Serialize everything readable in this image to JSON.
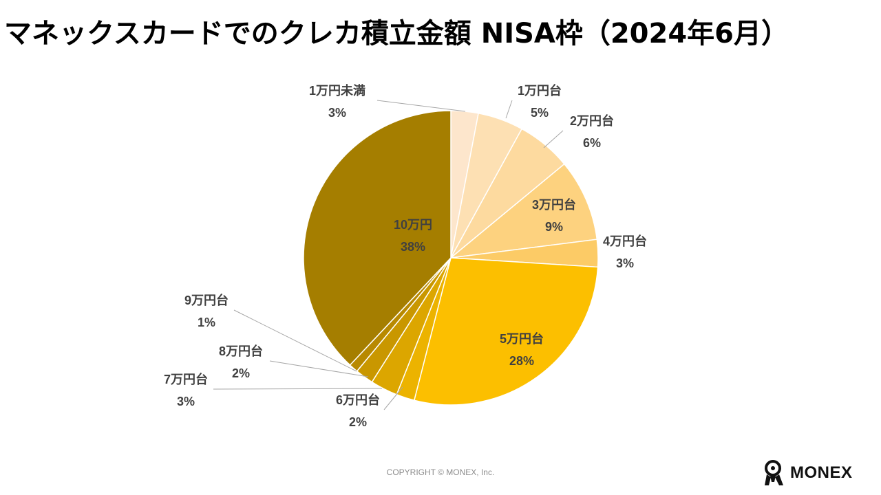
{
  "title": "マネックスカードでのクレカ積立金額 NISA枠（2024年6月）",
  "chart_data": {
    "type": "pie",
    "title": "マネックスカードでのクレカ積立金額 NISA枠（2024年6月）",
    "start": "top, clockwise",
    "slices": [
      {
        "label": "1万円未満",
        "value": 3,
        "pct": "3%",
        "color": "#fde6cc"
      },
      {
        "label": "1万円台",
        "value": 5,
        "pct": "5%",
        "color": "#fde0b3"
      },
      {
        "label": "2万円台",
        "value": 6,
        "pct": "6%",
        "color": "#fdda9f"
      },
      {
        "label": "3万円台",
        "value": 9,
        "pct": "9%",
        "color": "#fdd27f"
      },
      {
        "label": "4万円台",
        "value": 3,
        "pct": "3%",
        "color": "#fccb66"
      },
      {
        "label": "5万円台",
        "value": 28,
        "pct": "28%",
        "color": "#fcbf00"
      },
      {
        "label": "6万円台",
        "value": 2,
        "pct": "2%",
        "color": "#ecb300"
      },
      {
        "label": "7万円台",
        "value": 3,
        "pct": "3%",
        "color": "#dca600"
      },
      {
        "label": "8万円台",
        "value": 2,
        "pct": "2%",
        "color": "#c99700"
      },
      {
        "label": "9万円台",
        "value": 1,
        "pct": "1%",
        "color": "#b88900"
      },
      {
        "label": "10万円",
        "value": 38,
        "pct": "38%",
        "color": "#a57e00"
      }
    ]
  },
  "footer": {
    "copyright": "COPYRIGHT © MONEX, Inc.",
    "brand": "MONEX"
  },
  "colors": {
    "label": "#404040",
    "leader": "#a6a6a6"
  }
}
